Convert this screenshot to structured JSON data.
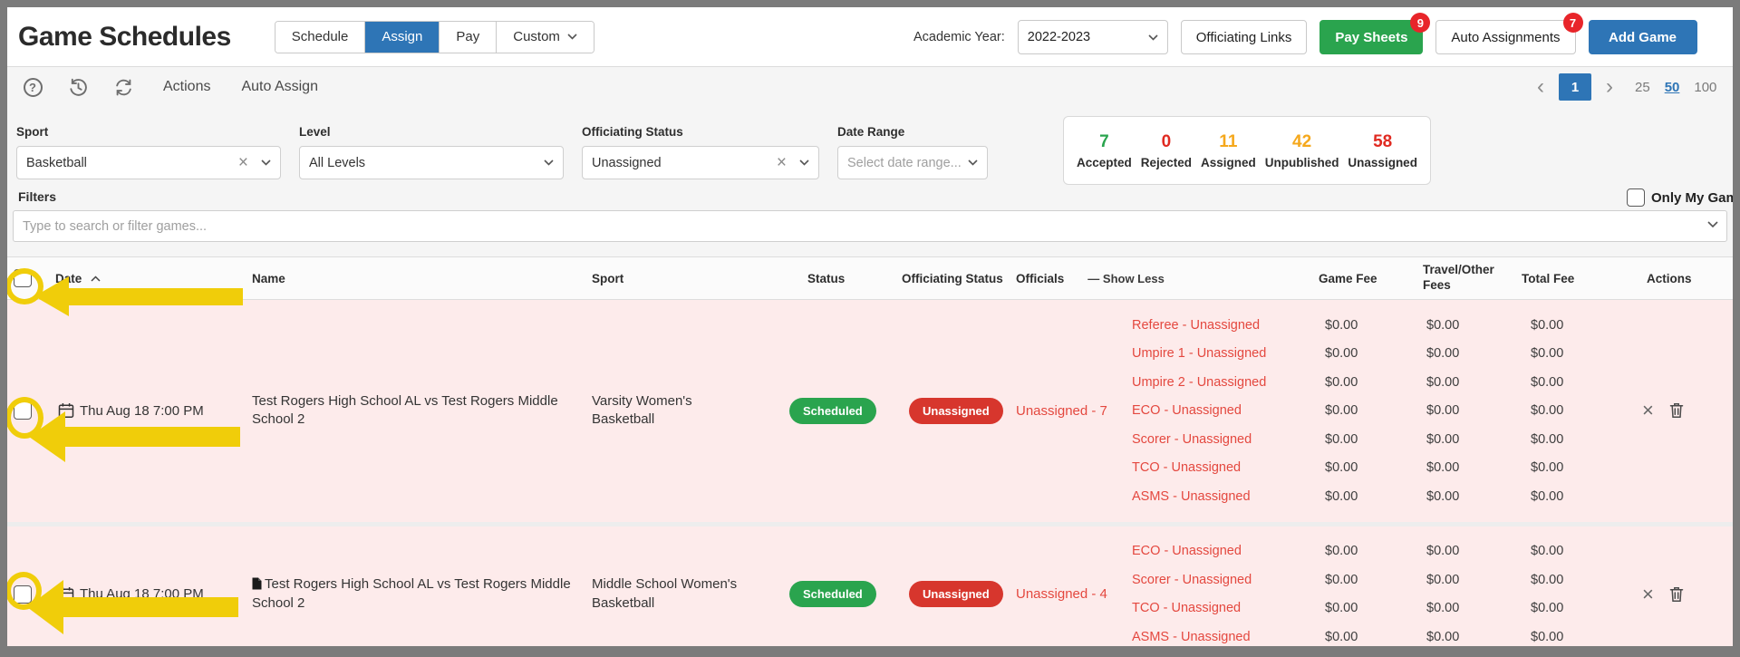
{
  "theme": {
    "blue": "#2e75b6",
    "green": "#2aa44e",
    "red-badge": "#d7362d",
    "red-text": "#e4483f",
    "pink": "#fdebeb",
    "yellow": "#f0cd0a",
    "frame": "#7b7b7b",
    "notif": "#e8252a"
  },
  "header": {
    "title": "Game Schedules",
    "tabs": [
      {
        "label": "Schedule",
        "active": false
      },
      {
        "label": "Assign",
        "active": true
      },
      {
        "label": "Pay",
        "active": false
      },
      {
        "label": "Custom",
        "active": false
      }
    ],
    "academic_year": {
      "label": "Academic Year:",
      "value": "2022-2023"
    },
    "officiating_links": "Officiating Links",
    "pay_sheets": "Pay Sheets",
    "pay_sheets_badge": "9",
    "auto_assignments": "Auto Assignments",
    "auto_assignments_badge": "7",
    "add_game": "Add Game"
  },
  "toolbar": {
    "help": "?",
    "actions": "Actions",
    "auto_assign": "Auto Assign",
    "pagination": {
      "prev": "‹",
      "page": "1",
      "next": "›",
      "sizes": [
        "25",
        "50",
        "100"
      ],
      "active_size": "50"
    }
  },
  "filters": {
    "heading": "Filters",
    "sport": {
      "label": "Sport",
      "value": "Basketball"
    },
    "level": {
      "label": "Level",
      "value": "All Levels"
    },
    "officiating_status": {
      "label": "Officiating Status",
      "value": "Unassigned"
    },
    "date_range": {
      "label": "Date Range",
      "placeholder": "Select date range..."
    },
    "only_my_games": "Only My Games",
    "search_placeholder": "Type to search or filter games..."
  },
  "stats": [
    {
      "value": "7",
      "label": "Accepted",
      "color": "#2aa44e"
    },
    {
      "value": "0",
      "label": "Rejected",
      "color": "#e02a21"
    },
    {
      "value": "11",
      "label": "Assigned",
      "color": "#f5a81c"
    },
    {
      "value": "42",
      "label": "Unpublished",
      "color": "#f5a81c"
    },
    {
      "value": "58",
      "label": "Unassigned",
      "color": "#e02a21"
    }
  ],
  "table": {
    "headers": {
      "date": "Date",
      "name": "Name",
      "sport": "Sport",
      "status": "Status",
      "officiating_status": "Officiating Status",
      "officials": "Officials",
      "show_less": "— Show Less",
      "game_fee": "Game Fee",
      "travel_fees": "Travel/Other Fees",
      "total_fee": "Total Fee",
      "actions": "Actions"
    },
    "rows": [
      {
        "date": "Thu Aug 18 7:00 PM",
        "name": "Test Rogers High School AL vs Test Rogers Middle School 2",
        "note_icon": false,
        "sport": "Varsity Women's Basketball",
        "status": "Scheduled",
        "officiating_status": "Unassigned",
        "summary": "Unassigned - 7",
        "officials": [
          {
            "slot": "Referee - Unassigned",
            "game_fee": "$0.00",
            "travel_fee": "$0.00",
            "total_fee": "$0.00"
          },
          {
            "slot": "Umpire 1 - Unassigned",
            "game_fee": "$0.00",
            "travel_fee": "$0.00",
            "total_fee": "$0.00"
          },
          {
            "slot": "Umpire 2 - Unassigned",
            "game_fee": "$0.00",
            "travel_fee": "$0.00",
            "total_fee": "$0.00"
          },
          {
            "slot": "ECO - Unassigned",
            "game_fee": "$0.00",
            "travel_fee": "$0.00",
            "total_fee": "$0.00"
          },
          {
            "slot": "Scorer - Unassigned",
            "game_fee": "$0.00",
            "travel_fee": "$0.00",
            "total_fee": "$0.00"
          },
          {
            "slot": "TCO - Unassigned",
            "game_fee": "$0.00",
            "travel_fee": "$0.00",
            "total_fee": "$0.00"
          },
          {
            "slot": "ASMS - Unassigned",
            "game_fee": "$0.00",
            "travel_fee": "$0.00",
            "total_fee": "$0.00"
          }
        ]
      },
      {
        "date": "Thu Aug 18 7:00 PM",
        "name": "Test Rogers High School AL vs Test Rogers Middle School 2",
        "note_icon": true,
        "sport": "Middle School Women's Basketball",
        "status": "Scheduled",
        "officiating_status": "Unassigned",
        "summary": "Unassigned - 4",
        "officials": [
          {
            "slot": "ECO - Unassigned",
            "game_fee": "$0.00",
            "travel_fee": "$0.00",
            "total_fee": "$0.00"
          },
          {
            "slot": "Scorer - Unassigned",
            "game_fee": "$0.00",
            "travel_fee": "$0.00",
            "total_fee": "$0.00"
          },
          {
            "slot": "TCO - Unassigned",
            "game_fee": "$0.00",
            "travel_fee": "$0.00",
            "total_fee": "$0.00"
          },
          {
            "slot": "ASMS - Unassigned",
            "game_fee": "$0.00",
            "travel_fee": "$0.00",
            "total_fee": "$0.00"
          }
        ]
      }
    ]
  }
}
